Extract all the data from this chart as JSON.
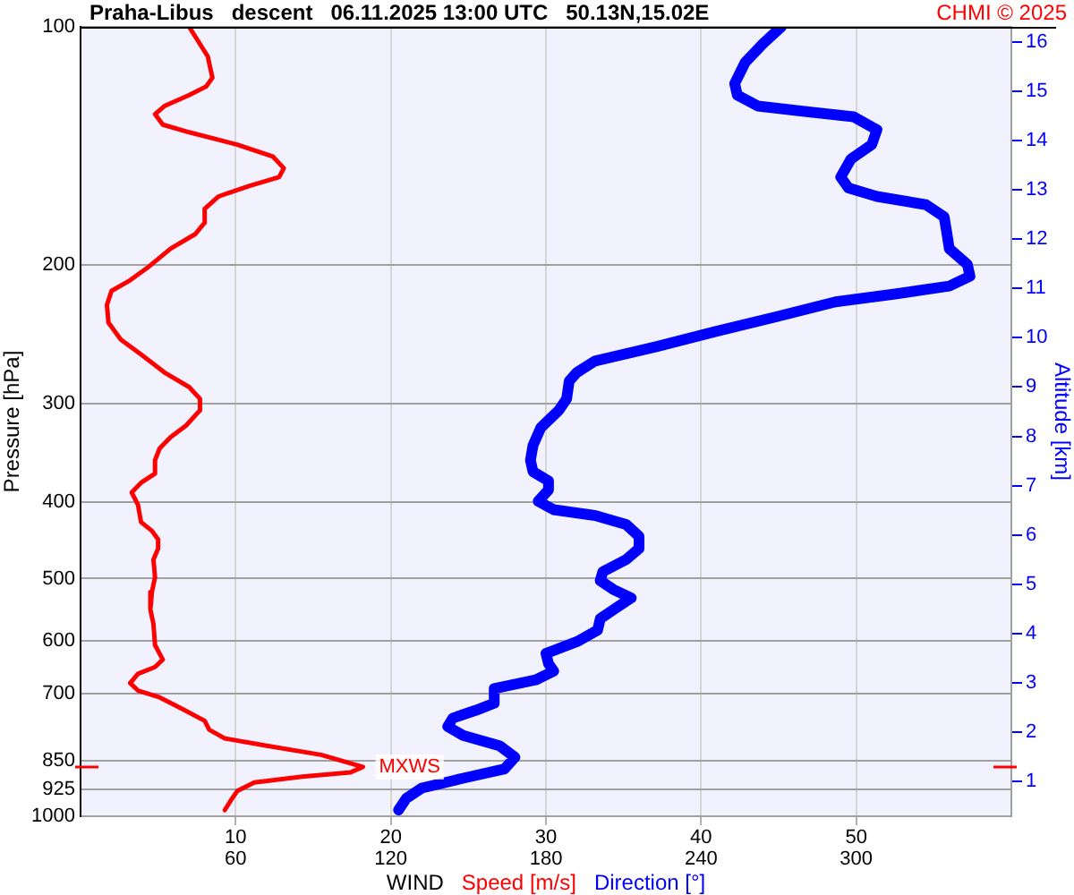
{
  "chart_data": {
    "type": "line",
    "orientation": "horizontal",
    "title": "Praha-Libus   descent   06.11.2025 13:00 UTC   50.13N,15.02E",
    "xlabel": "WIND",
    "ylabel": "Pressure [hPa]",
    "y2label": "Altitude [km]",
    "annotations": [
      "CHMI © 2025",
      {
        "text": "MXWS",
        "x": 18.2,
        "y": 866
      }
    ],
    "series": [
      {
        "name": "Speed [m/s]",
        "color": "#ff0000",
        "x": [
          100,
          109,
          116,
          119,
          122,
          126,
          129,
          133,
          136,
          141,
          146,
          151,
          155,
          159,
          164,
          170,
          177,
          183,
          191,
          202,
          210,
          216,
          225,
          237,
          249,
          260,
          274,
          286,
          296,
          306,
          320,
          331,
          342,
          354,
          368,
          378,
          389,
          403,
          424,
          435,
          446,
          458,
          473,
          498,
          520,
          547,
          571,
          607,
          633,
          647,
          660,
          678,
          693,
          707,
          732,
          757,
          777,
          797,
          814,
          836,
          866,
          880,
          891,
          906,
          929,
          954,
          982
        ],
        "values": [
          7.0,
          8.2,
          8.5,
          8.1,
          7.0,
          5.4,
          4.8,
          5.3,
          7.0,
          10.1,
          12.4,
          13.1,
          12.8,
          10.9,
          8.9,
          8.0,
          8.0,
          7.4,
          5.8,
          4.3,
          3.1,
          2.0,
          1.7,
          1.8,
          2.6,
          3.9,
          5.4,
          7.0,
          7.7,
          7.7,
          6.8,
          5.8,
          5.1,
          4.8,
          4.8,
          3.9,
          3.3,
          3.7,
          3.9,
          4.6,
          5.0,
          5.0,
          4.7,
          4.8,
          4.6,
          4.5,
          4.7,
          4.8,
          5.3,
          4.8,
          3.7,
          3.2,
          3.7,
          5.1,
          6.6,
          8.0,
          8.3,
          9.3,
          12.0,
          15.5,
          18.2,
          17.4,
          14.3,
          11.2,
          10.1,
          9.7,
          9.3
        ]
      },
      {
        "name": "Direction [°]",
        "color": "#0000ff",
        "axis": "x2",
        "x": [
          100,
          105,
          111,
          118,
          122,
          126,
          128,
          130,
          135,
          141,
          147,
          155,
          160,
          164,
          168,
          174,
          182,
          191,
          200,
          207,
          213,
          218,
          223,
          233,
          243,
          254,
          265,
          274,
          281,
          296,
          306,
          322,
          339,
          354,
          366,
          376,
          386,
          399,
          409,
          416,
          427,
          442,
          458,
          473,
          490,
          503,
          516,
          529,
          545,
          562,
          581,
          601,
          622,
          641,
          655,
          672,
          689,
          719,
          734,
          751,
          770,
          790,
          814,
          842,
          871,
          895,
          921,
          949,
          982
        ],
        "values": [
          271,
          264,
          257,
          253,
          254,
          262,
          280,
          299,
          308,
          306,
          298,
          294,
          297,
          308,
          327,
          334,
          335,
          336,
          343,
          344,
          336,
          315,
          292,
          269,
          246,
          223,
          199,
          192,
          189,
          188,
          185,
          178,
          175,
          174,
          175,
          181,
          181,
          177,
          183,
          199,
          211,
          216,
          216,
          211,
          202,
          201,
          206,
          213,
          207,
          201,
          200,
          192,
          180,
          181,
          183,
          176,
          160,
          160,
          153,
          144,
          142,
          148,
          162,
          168,
          164,
          148,
          132,
          126,
          123
        ]
      }
    ],
    "xlim": [
      0,
      60
    ],
    "xticks": [
      10,
      20,
      30,
      40,
      50
    ],
    "x2lim": [
      0,
      360
    ],
    "x2ticks": [
      60,
      120,
      180,
      240,
      300
    ],
    "ylim": [
      1000,
      100
    ],
    "yticks": [
      100,
      200,
      300,
      400,
      500,
      600,
      700,
      850,
      925,
      1000
    ],
    "log": "y",
    "y2lim": [
      0.3,
      16.3
    ],
    "y2ticks": [
      1,
      2,
      3,
      4,
      5,
      6,
      7,
      8,
      9,
      10,
      11,
      12,
      13,
      14,
      15,
      16
    ],
    "grid": true,
    "legend": "bottom"
  }
}
